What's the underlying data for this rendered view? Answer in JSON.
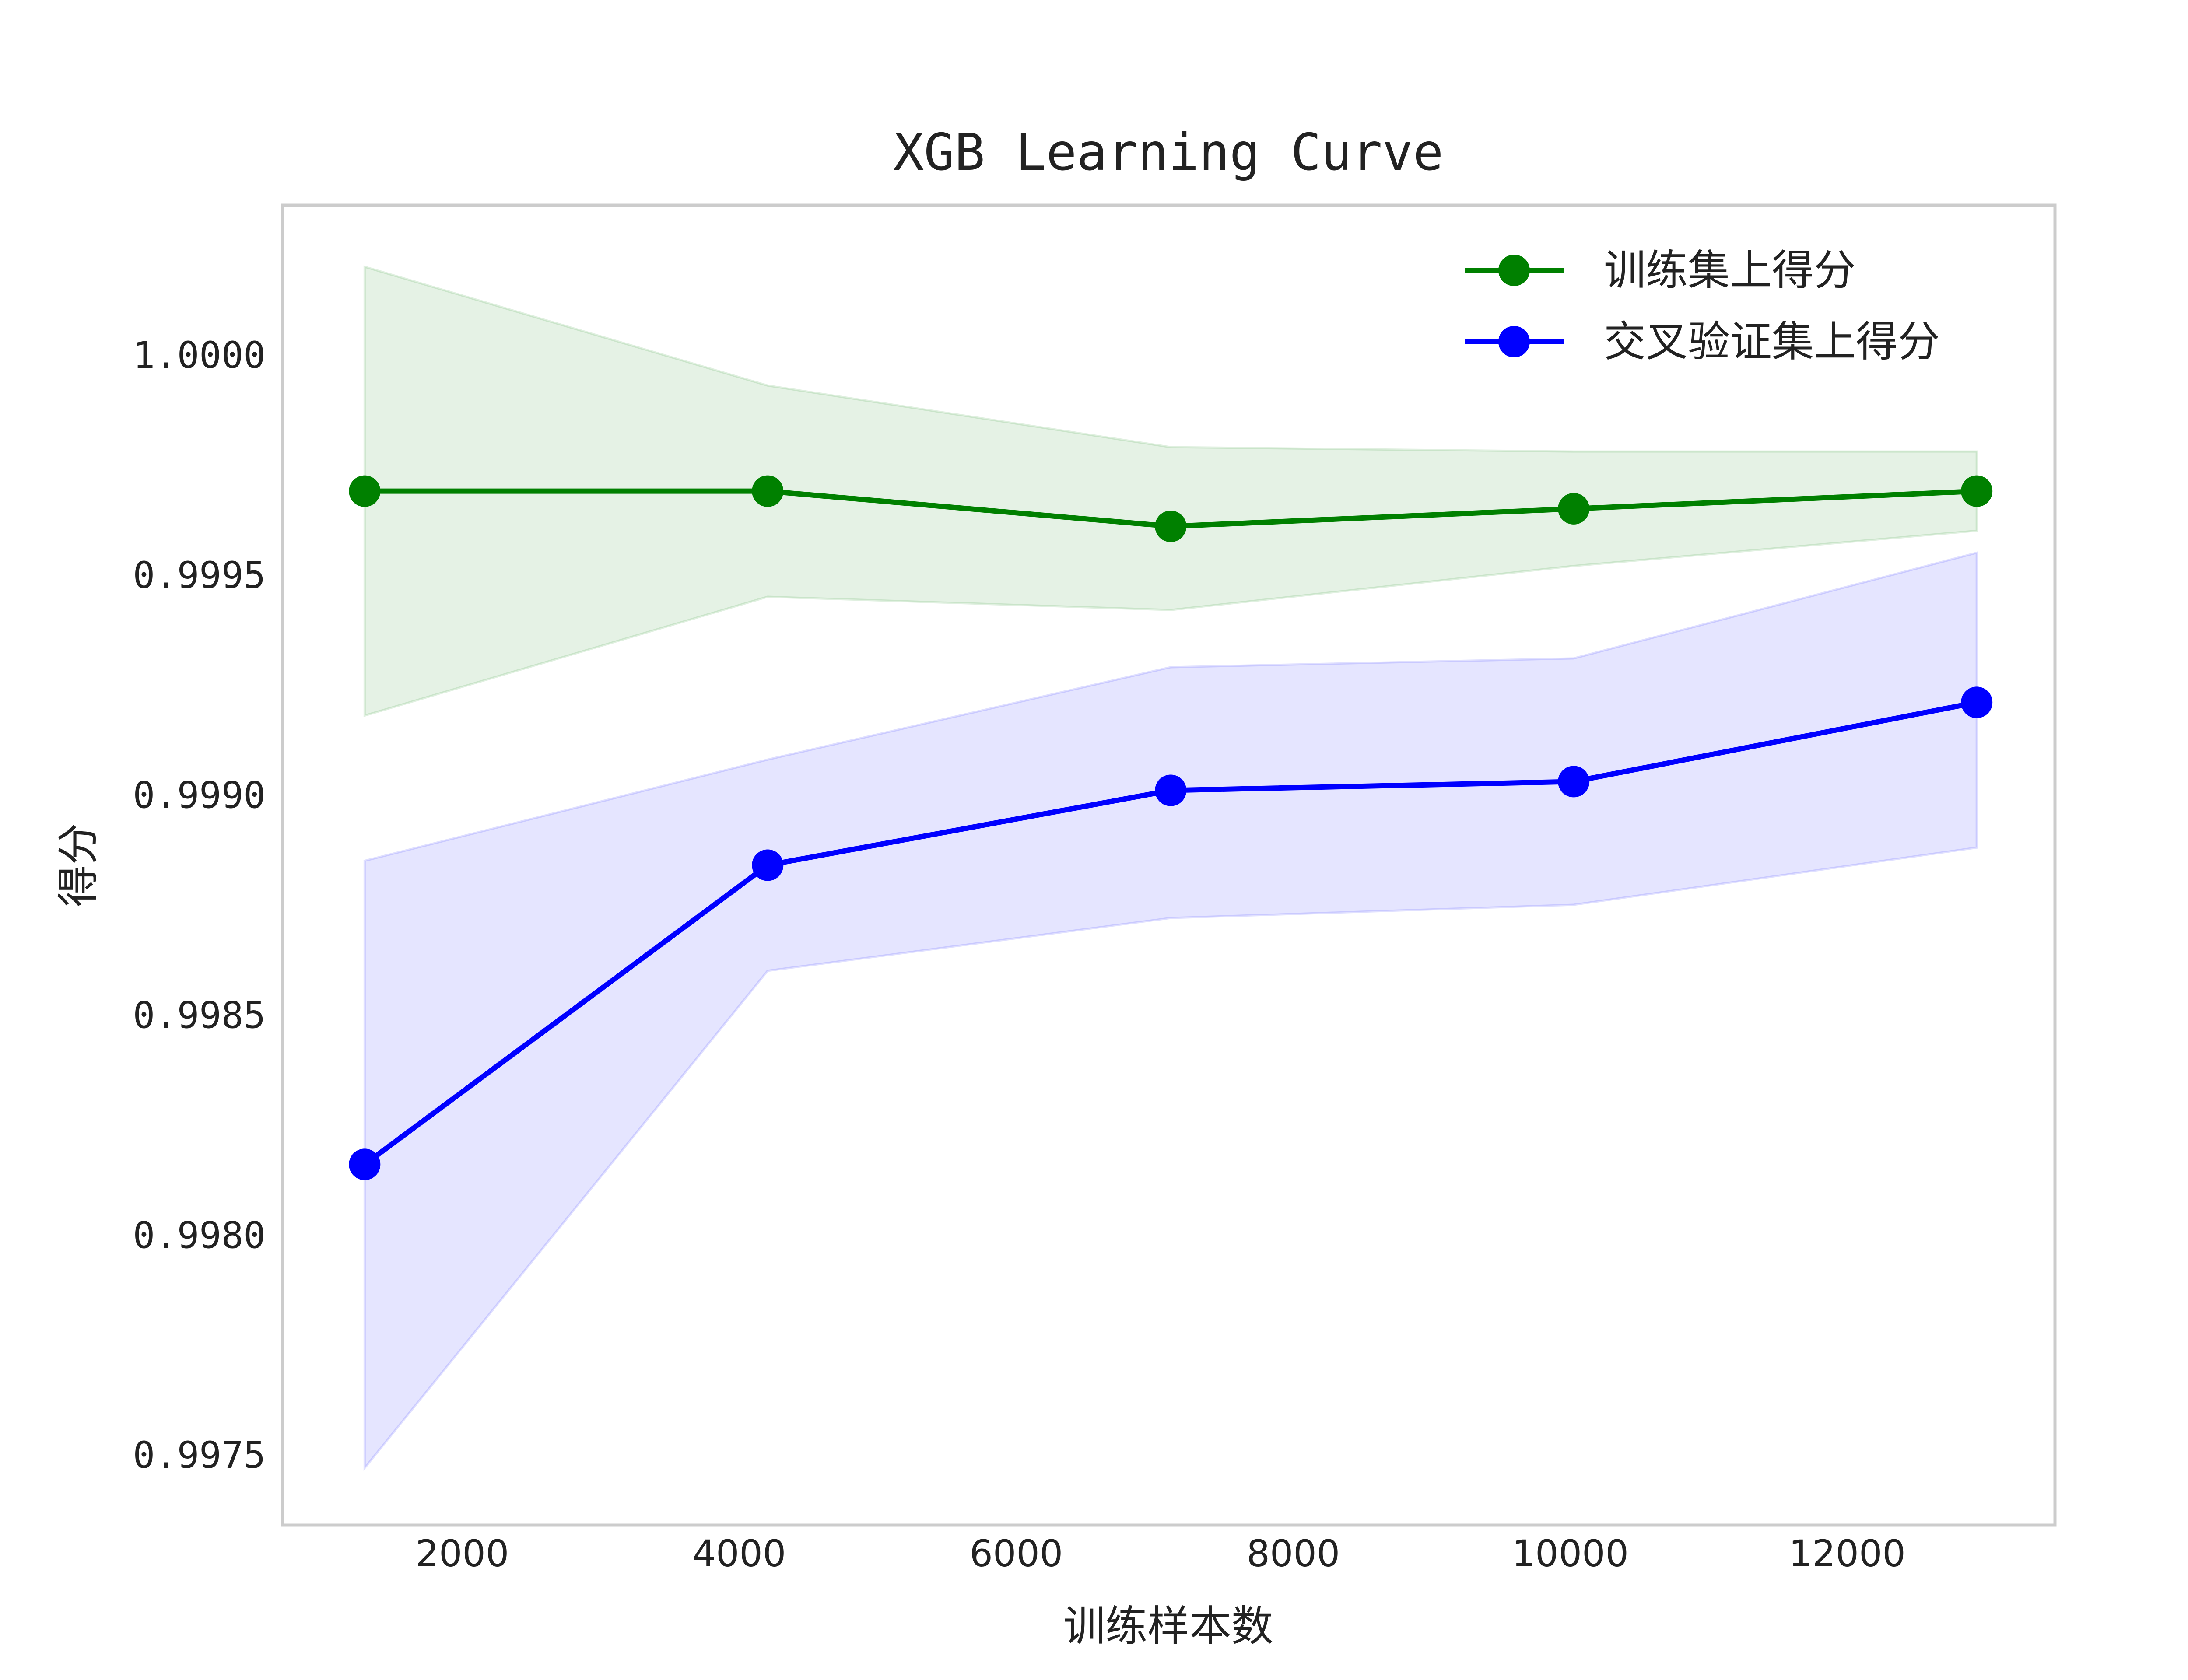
{
  "chart_data": {
    "type": "line",
    "title": "XGB Learning Curve",
    "xlabel": "训练样本数",
    "ylabel": "得分",
    "x": [
      1295,
      4205,
      7115,
      10025,
      12935
    ],
    "xlim": [
      700,
      13500
    ],
    "ylim": [
      0.99734,
      1.00034
    ],
    "xticks": [
      2000,
      4000,
      6000,
      8000,
      10000,
      12000
    ],
    "yticks": [
      0.9975,
      0.998,
      0.9985,
      0.999,
      0.9995,
      1.0
    ],
    "ytick_labels": [
      "0.9975",
      "0.9980",
      "0.9985",
      "0.9990",
      "0.9995",
      "1.0000"
    ],
    "grid": false,
    "legend_position": "top-right",
    "series": [
      {
        "name": "训练集上得分",
        "color": "#008000",
        "values": [
          0.99969,
          0.99969,
          0.99961,
          0.99965,
          0.99969
        ],
        "upper": [
          1.0002,
          0.99993,
          0.99979,
          0.99978,
          0.99978
        ],
        "lower": [
          0.99918,
          0.99945,
          0.99942,
          0.99952,
          0.9996
        ]
      },
      {
        "name": "交叉验证集上得分",
        "color": "#0000ff",
        "values": [
          0.99816,
          0.99884,
          0.99901,
          0.99903,
          0.99921
        ],
        "upper": [
          0.99885,
          0.99908,
          0.99929,
          0.99931,
          0.99955
        ],
        "lower": [
          0.99747,
          0.9986,
          0.99872,
          0.99875,
          0.99888
        ]
      }
    ]
  }
}
